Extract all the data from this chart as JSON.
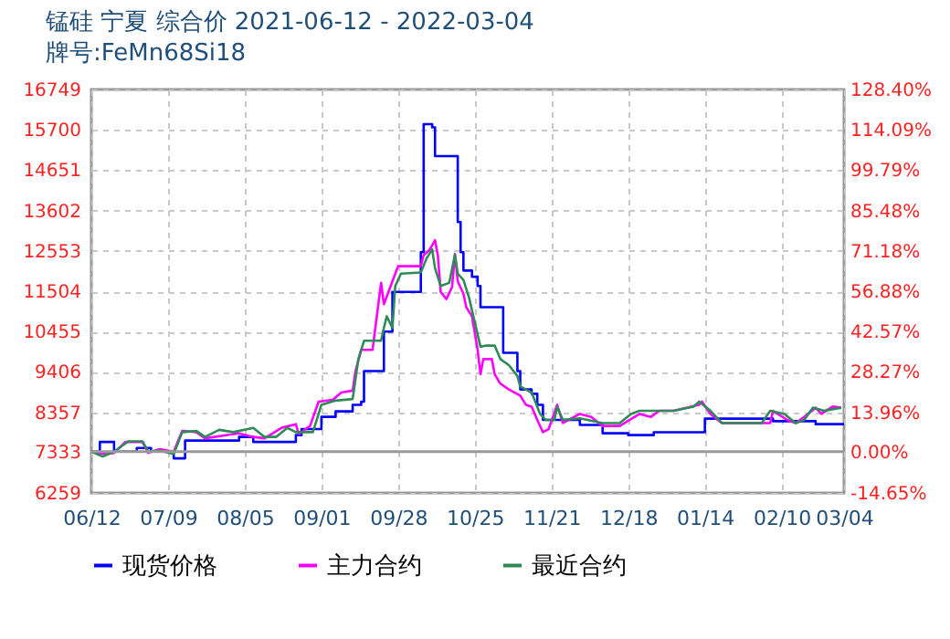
{
  "chart_data": {
    "type": "line",
    "title": "锰硅 宁夏 综合价 2021-06-12 - 2022-03-04",
    "subtitle": "牌号:FeMn68Si18",
    "xlim": [
      "2021-06-12",
      "2022-03-04"
    ],
    "xticks": [
      {
        "value": "2021-06-12",
        "label": "06/12"
      },
      {
        "value": "2021-07-09",
        "label": "07/09"
      },
      {
        "value": "2021-08-05",
        "label": "08/05"
      },
      {
        "value": "2021-09-01",
        "label": "09/01"
      },
      {
        "value": "2021-09-28",
        "label": "09/28"
      },
      {
        "value": "2021-10-25",
        "label": "10/25"
      },
      {
        "value": "2021-11-21",
        "label": "11/21"
      },
      {
        "value": "2021-12-18",
        "label": "12/18"
      },
      {
        "value": "2022-01-14",
        "label": "01/14"
      },
      {
        "value": "2022-02-10",
        "label": "02/10"
      },
      {
        "value": "2022-03-04",
        "label": "03/04"
      }
    ],
    "ylim": [
      6259,
      16749
    ],
    "yticks": [
      6259,
      7333,
      8357,
      9406,
      10455,
      11504,
      12553,
      13602,
      14651,
      15700,
      16749
    ],
    "y2lim": [
      -14.65,
      128.4
    ],
    "y2ticks": [
      {
        "value": -14.65,
        "label": "-14.65%"
      },
      {
        "value": 0,
        "label": "0.00%"
      },
      {
        "value": 13.96,
        "label": "13.96%"
      },
      {
        "value": 28.27,
        "label": "28.27%"
      },
      {
        "value": 42.57,
        "label": "42.57%"
      },
      {
        "value": 56.88,
        "label": "56.88%"
      },
      {
        "value": 71.18,
        "label": "71.18%"
      },
      {
        "value": 85.48,
        "label": "85.48%"
      },
      {
        "value": 99.79,
        "label": "99.79%"
      },
      {
        "value": 114.09,
        "label": "114.09%"
      },
      {
        "value": 128.4,
        "label": "128.40%"
      }
    ],
    "ref_lines": [
      {
        "axis": "y2",
        "value": 0,
        "color": "#999999"
      }
    ],
    "grid": true,
    "legend": "bottom",
    "line_style": "solid",
    "series": [
      {
        "name": "现货价格",
        "type": "step",
        "color": "#0000ff",
        "x": [
          "2021-06-12",
          "2021-06-15",
          "2021-06-20",
          "2021-06-28",
          "2021-07-03",
          "2021-07-11",
          "2021-07-15",
          "2021-08-03",
          "2021-08-08",
          "2021-08-23",
          "2021-08-25",
          "2021-09-01",
          "2021-09-06",
          "2021-09-12",
          "2021-09-15",
          "2021-09-16",
          "2021-09-23",
          "2021-09-26",
          "2021-10-06",
          "2021-10-07",
          "2021-10-10",
          "2021-10-11",
          "2021-10-19",
          "2021-10-20",
          "2021-10-21",
          "2021-10-24",
          "2021-10-26",
          "2021-10-27",
          "2021-11-04",
          "2021-11-09",
          "2021-11-10",
          "2021-11-14",
          "2021-11-16",
          "2021-11-18",
          "2021-12-01",
          "2021-12-09",
          "2021-12-18",
          "2021-12-27",
          "2022-01-14",
          "2022-02-07",
          "2022-02-22",
          "2022-03-04"
        ],
        "values": [
          7333,
          7586,
          7333,
          7429,
          7333,
          7158,
          7620,
          7715,
          7586,
          7762,
          7919,
          8237,
          8380,
          8551,
          8633,
          9426,
          10453,
          11485,
          12517,
          15846,
          15765,
          15018,
          13300,
          12517,
          12041,
          11880,
          11642,
          11090,
          9902,
          9426,
          8950,
          8837,
          8551,
          8157,
          8028,
          7810,
          7762,
          7838,
          8190,
          8125,
          8047,
          8047
        ]
      },
      {
        "name": "主力合约",
        "color": "#ff00ff",
        "x": [
          "2021-06-12",
          "2021-06-17",
          "2021-06-20",
          "2021-06-24",
          "2021-06-30",
          "2021-07-02",
          "2021-07-06",
          "2021-07-11",
          "2021-07-14",
          "2021-07-19",
          "2021-07-22",
          "2021-08-03",
          "2021-08-08",
          "2021-08-12",
          "2021-08-18",
          "2021-08-23",
          "2021-08-24",
          "2021-08-28",
          "2021-08-31",
          "2021-09-05",
          "2021-09-08",
          "2021-09-12",
          "2021-09-13",
          "2021-09-15",
          "2021-09-19",
          "2021-09-22",
          "2021-09-23",
          "2021-09-27",
          "2021-09-28",
          "2021-10-06",
          "2021-10-07",
          "2021-10-09",
          "2021-10-11",
          "2021-10-12",
          "2021-10-13",
          "2021-10-15",
          "2021-10-17",
          "2021-10-18",
          "2021-10-19",
          "2021-10-21",
          "2021-10-22",
          "2021-10-24",
          "2021-10-26",
          "2021-10-27",
          "2021-10-28",
          "2021-10-31",
          "2021-11-01",
          "2021-11-03",
          "2021-11-06",
          "2021-11-10",
          "2021-11-12",
          "2021-11-14",
          "2021-11-16",
          "2021-11-18",
          "2021-11-20",
          "2021-11-23",
          "2021-11-25",
          "2021-12-01",
          "2021-12-05",
          "2021-12-09",
          "2021-12-15",
          "2021-12-22",
          "2021-12-26",
          "2021-12-29",
          "2022-01-03",
          "2022-01-12",
          "2022-01-13",
          "2022-01-16",
          "2022-01-20",
          "2022-02-06",
          "2022-02-07",
          "2022-02-12",
          "2022-02-15",
          "2022-02-18",
          "2022-02-22",
          "2022-02-24",
          "2022-02-28",
          "2022-03-03"
        ],
        "values": [
          7333,
          7270,
          7300,
          7586,
          7586,
          7300,
          7400,
          7333,
          7871,
          7840,
          7680,
          7810,
          7715,
          7680,
          7953,
          8047,
          7790,
          8000,
          8633,
          8680,
          8870,
          8920,
          9426,
          9978,
          9978,
          11723,
          11166,
          11960,
          12153,
          12153,
          12441,
          12570,
          12831,
          12430,
          11485,
          11300,
          11612,
          12470,
          11760,
          11440,
          11090,
          10853,
          9978,
          9346,
          9740,
          9740,
          9346,
          9100,
          8950,
          8790,
          8551,
          8500,
          8157,
          7838,
          7920,
          8551,
          8076,
          8314,
          8237,
          8000,
          8000,
          8314,
          8237,
          8394,
          8394,
          8551,
          8633,
          8314,
          8076,
          8076,
          8394,
          8157,
          8076,
          8237,
          8475,
          8314,
          8504,
          8475
        ]
      },
      {
        "name": "最近合约",
        "color": "#2e8b57",
        "x": [
          "2021-06-12",
          "2021-06-16",
          "2021-06-20",
          "2021-06-25",
          "2021-06-30",
          "2021-07-02",
          "2021-07-06",
          "2021-07-11",
          "2021-07-14",
          "2021-07-19",
          "2021-07-22",
          "2021-07-27",
          "2021-08-01",
          "2021-08-08",
          "2021-08-12",
          "2021-08-16",
          "2021-08-20",
          "2021-08-23",
          "2021-08-29",
          "2021-09-01",
          "2021-09-06",
          "2021-09-12",
          "2021-09-14",
          "2021-09-16",
          "2021-09-22",
          "2021-09-23",
          "2021-09-24",
          "2021-09-26",
          "2021-09-27",
          "2021-09-29",
          "2021-10-06",
          "2021-10-08",
          "2021-10-10",
          "2021-10-11",
          "2021-10-13",
          "2021-10-16",
          "2021-10-18",
          "2021-10-19",
          "2021-10-21",
          "2021-10-23",
          "2021-10-25",
          "2021-10-27",
          "2021-10-29",
          "2021-11-01",
          "2021-11-03",
          "2021-11-06",
          "2021-11-09",
          "2021-11-10",
          "2021-11-14",
          "2021-11-17",
          "2021-11-19",
          "2021-11-22",
          "2021-11-23",
          "2021-11-25",
          "2021-12-01",
          "2021-12-09",
          "2021-12-15",
          "2021-12-19",
          "2021-12-22",
          "2021-12-26",
          "2022-01-03",
          "2022-01-10",
          "2022-01-12",
          "2022-01-16",
          "2022-01-20",
          "2022-02-03",
          "2022-02-06",
          "2022-02-11",
          "2022-02-15",
          "2022-02-18",
          "2022-02-21",
          "2022-02-25",
          "2022-03-03"
        ],
        "values": [
          7333,
          7206,
          7333,
          7600,
          7600,
          7333,
          7360,
          7270,
          7840,
          7870,
          7715,
          7900,
          7840,
          7950,
          7715,
          7715,
          7950,
          7840,
          7840,
          8550,
          8660,
          8700,
          9740,
          10215,
          10215,
          10550,
          10850,
          10550,
          11642,
          11960,
          11990,
          12355,
          12593,
          12100,
          11640,
          11720,
          12450,
          11960,
          11800,
          11328,
          10694,
          10059,
          10090,
          10090,
          9740,
          9583,
          9300,
          9027,
          8870,
          8314,
          8157,
          8157,
          8504,
          8157,
          8200,
          8076,
          8076,
          8314,
          8394,
          8394,
          8394,
          8504,
          8633,
          8394,
          8076,
          8076,
          8394,
          8314,
          8076,
          8157,
          8475,
          8394,
          8475
        ]
      }
    ]
  }
}
